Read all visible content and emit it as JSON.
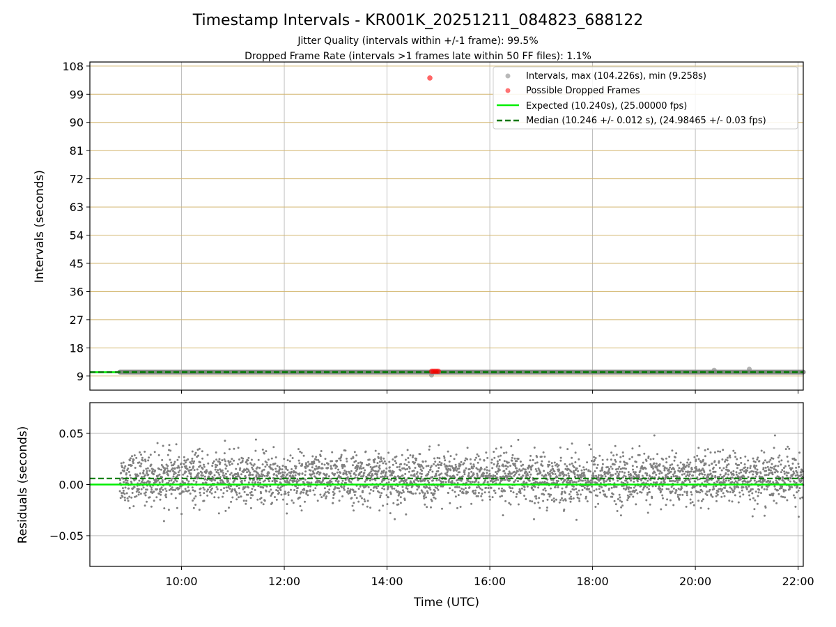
{
  "chart_data": [
    {
      "type": "scatter",
      "title": "Timestamp Intervals - KR001K_20251211_084823_688122",
      "subtitle_lines": [
        "Jitter Quality (intervals within +/-1 frame): 99.5%",
        "Dropped Frame Rate (intervals >1 frames late within 50 FF files): 1.1%"
      ],
      "xlabel": "",
      "ylabel": "Intervals (seconds)",
      "xlim": [
        "08:13",
        "22:06"
      ],
      "ylim": [
        4.5,
        109.3
      ],
      "yticks": [
        9,
        18,
        27,
        36,
        45,
        54,
        63,
        72,
        81,
        90,
        99,
        108
      ],
      "xtick_labels": [
        "10:00",
        "12:00",
        "14:00",
        "16:00",
        "18:00",
        "20:00",
        "22:00"
      ],
      "grid": true,
      "legend": {
        "position": "top-right",
        "entries": [
          "Intervals, max (104.226s), min (9.258s)",
          "Possible Dropped Frames",
          "Expected (10.240s), (25.00000 fps)",
          "Median (10.246 +/- 0.012 s), (24.98465 +/- 0.03 fps)"
        ]
      },
      "series": [
        {
          "name": "Intervals, max (104.226s), min (9.258s)",
          "color": "#808080",
          "x_range": [
            "08:48",
            "22:06"
          ],
          "y_typical": 10.25,
          "outliers": [
            {
              "x": "14:52",
              "y": 9.3
            },
            {
              "x": "20:22",
              "y": 10.9
            },
            {
              "x": "21:03",
              "y": 11.2
            }
          ]
        },
        {
          "name": "Possible Dropped Frames",
          "color": "#ff0000",
          "points": [
            {
              "x": "14:50",
              "y": 104.2
            },
            {
              "x": "14:52",
              "y": 10.5
            },
            {
              "x": "14:54",
              "y": 10.5
            },
            {
              "x": "14:56",
              "y": 10.5
            },
            {
              "x": "14:58",
              "y": 10.5
            },
            {
              "x": "15:00",
              "y": 10.5
            }
          ]
        },
        {
          "name": "Expected (10.240s), (25.00000 fps)",
          "color": "#00ee00",
          "style": "solid",
          "y": 10.24
        },
        {
          "name": "Median (10.246 +/- 0.012 s), (24.98465 +/- 0.03 fps)",
          "color": "#007700",
          "style": "dashed",
          "y": 10.246
        }
      ]
    },
    {
      "type": "scatter",
      "xlabel": "Time (UTC)",
      "ylabel": "Residuals (seconds)",
      "xlim": [
        "08:13",
        "22:06"
      ],
      "ylim": [
        -0.08,
        0.08
      ],
      "yticks": [
        0.05,
        0.0,
        -0.05
      ],
      "ytick_labels": [
        "0.05",
        "0.00",
        "−0.05"
      ],
      "xtick_labels": [
        "10:00",
        "12:00",
        "14:00",
        "16:00",
        "18:00",
        "20:00",
        "22:00"
      ],
      "grid": true,
      "series": [
        {
          "name": "Residuals",
          "color": "#808080",
          "x_range": [
            "08:48",
            "22:06"
          ],
          "y_range": [
            -0.038,
            0.048
          ],
          "y_center": 0.006,
          "y_spread": 0.012
        },
        {
          "name": "Expected",
          "color": "#00ee00",
          "style": "solid",
          "y": 0.0
        },
        {
          "name": "Median",
          "color": "#007700",
          "style": "dashed",
          "y": 0.006
        }
      ]
    }
  ]
}
